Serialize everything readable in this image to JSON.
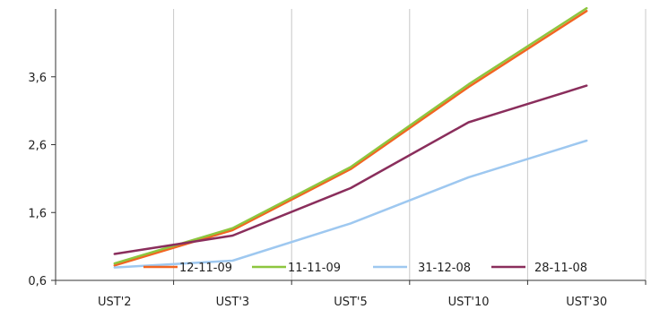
{
  "chart_data": {
    "type": "line",
    "title": "",
    "xlabel": "",
    "ylabel": "",
    "categories": [
      "UST'2",
      "UST'3",
      "UST'5",
      "UST'10",
      "UST'30"
    ],
    "ylim": [
      0.6,
      4.6
    ],
    "yticks": [
      "0,6",
      "1,6",
      "2,6",
      "3,6"
    ],
    "ytick_values": [
      0.6,
      1.6,
      2.6,
      3.6
    ],
    "grid": {
      "vertical": true,
      "horizontal": false
    },
    "legend_position": "bottom-inside",
    "series": [
      {
        "name": "12-11-09",
        "color": "#f26522",
        "values": [
          0.82,
          1.34,
          2.24,
          3.45,
          4.57
        ]
      },
      {
        "name": "11-11-09",
        "color": "#8dc63f",
        "values": [
          0.85,
          1.37,
          2.27,
          3.49,
          4.61
        ]
      },
      {
        "name": "31-12-08",
        "color": "#9ec8f0",
        "values": [
          0.79,
          0.89,
          1.44,
          2.12,
          2.66
        ]
      },
      {
        "name": "28-11-08",
        "color": "#8a2e5c",
        "values": [
          0.99,
          1.26,
          1.96,
          2.93,
          3.47
        ]
      }
    ]
  }
}
